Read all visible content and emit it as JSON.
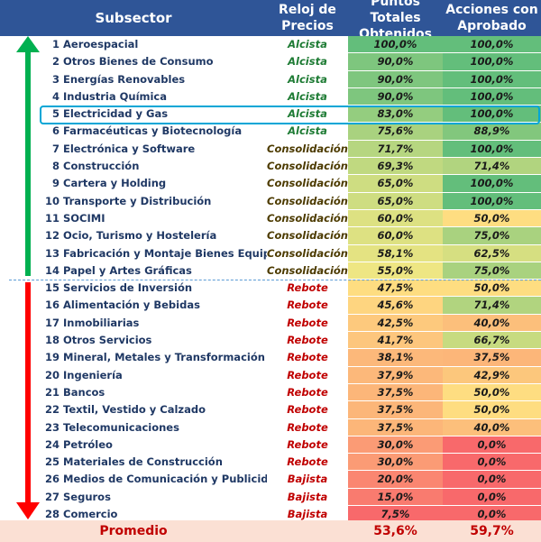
{
  "header": {
    "subsector": "Subsector",
    "reloj": "Reloj de Precios",
    "puntos": "Puntos Totales Obtenidos",
    "acciones": "Acciones con Aprobado"
  },
  "rows": [
    {
      "num": "1",
      "name": "Aeroespacial",
      "status": "Alcista",
      "pts": "100,0%",
      "acc": "100,0%",
      "pts_color": "#63be7b",
      "acc_color": "#63be7b"
    },
    {
      "num": "2",
      "name": "Otros Bienes de Consumo",
      "status": "Alcista",
      "pts": "90,0%",
      "acc": "100,0%",
      "pts_color": "#7ec67e",
      "acc_color": "#63be7b"
    },
    {
      "num": "3",
      "name": "Energías Renovables",
      "status": "Alcista",
      "pts": "90,0%",
      "acc": "100,0%",
      "pts_color": "#7ec67e",
      "acc_color": "#63be7b"
    },
    {
      "num": "4",
      "name": "Industria Química",
      "status": "Alcista",
      "pts": "90,0%",
      "acc": "100,0%",
      "pts_color": "#7ec67e",
      "acc_color": "#63be7b"
    },
    {
      "num": "5",
      "name": "Electricidad y Gas",
      "status": "Alcista",
      "pts": "83,0%",
      "acc": "100,0%",
      "pts_color": "#94cd7f",
      "acc_color": "#63be7b"
    },
    {
      "num": "6",
      "name": "Farmacéuticas y Biotecnología",
      "status": "Alcista",
      "pts": "75,6%",
      "acc": "88,9%",
      "pts_color": "#a9d27f",
      "acc_color": "#82c77d"
    },
    {
      "num": "7",
      "name": "Electrónica y Software",
      "status": "Consolidación",
      "pts": "71,7%",
      "acc": "100,0%",
      "pts_color": "#b6d680",
      "acc_color": "#63be7b"
    },
    {
      "num": "8",
      "name": "Construcción",
      "status": "Consolidación",
      "pts": "69,3%",
      "acc": "71,4%",
      "pts_color": "#c0d980",
      "acc_color": "#b1d47f"
    },
    {
      "num": "9",
      "name": "Cartera y Holding",
      "status": "Consolidación",
      "pts": "65,0%",
      "acc": "100,0%",
      "pts_color": "#cedd81",
      "acc_color": "#63be7b"
    },
    {
      "num": "10",
      "name": "Transporte y Distribución",
      "status": "Consolidación",
      "pts": "65,0%",
      "acc": "100,0%",
      "pts_color": "#cedd81",
      "acc_color": "#63be7b"
    },
    {
      "num": "11",
      "name": "SOCIMI",
      "status": "Consolidación",
      "pts": "60,0%",
      "acc": "50,0%",
      "pts_color": "#dde182",
      "acc_color": "#fedd81"
    },
    {
      "num": "12",
      "name": "Ocio, Turismo y Hostelería",
      "status": "Consolidación",
      "pts": "60,0%",
      "acc": "75,0%",
      "pts_color": "#dde182",
      "acc_color": "#a9d27f"
    },
    {
      "num": "13",
      "name": "Fabricación y Montaje Bienes Equipo",
      "status": "Consolidación",
      "pts": "58,1%",
      "acc": "62,5%",
      "pts_color": "#e4e382",
      "acc_color": "#d6df81"
    },
    {
      "num": "14",
      "name": "Papel y Artes Gráficas",
      "status": "Consolidación",
      "pts": "55,0%",
      "acc": "75,0%",
      "pts_color": "#eee683",
      "acc_color": "#a9d27f"
    },
    {
      "num": "15",
      "name": "Servicios de Inversión",
      "status": "Rebote",
      "pts": "47,5%",
      "acc": "50,0%",
      "pts_color": "#fedd81",
      "acc_color": "#fedd81"
    },
    {
      "num": "16",
      "name": "Alimentación y Bebidas",
      "status": "Rebote",
      "pts": "45,6%",
      "acc": "71,4%",
      "pts_color": "#fed580",
      "acc_color": "#b1d47f"
    },
    {
      "num": "17",
      "name": "Inmobiliarias",
      "status": "Rebote",
      "pts": "42,5%",
      "acc": "40,0%",
      "pts_color": "#fdc97d",
      "acc_color": "#fcbf7b"
    },
    {
      "num": "18",
      "name": "Otros Servicios",
      "status": "Rebote",
      "pts": "41,7%",
      "acc": "66,7%",
      "pts_color": "#fdc67d",
      "acc_color": "#c7db80"
    },
    {
      "num": "19",
      "name": "Mineral, Metales y Transformación",
      "status": "Rebote",
      "pts": "38,1%",
      "acc": "37,5%",
      "pts_color": "#fcb87a",
      "acc_color": "#fcb679"
    },
    {
      "num": "20",
      "name": "Ingeniería",
      "status": "Rebote",
      "pts": "37,9%",
      "acc": "42,9%",
      "pts_color": "#fcb87a",
      "acc_color": "#fcc77c"
    },
    {
      "num": "21",
      "name": "Bancos",
      "status": "Rebote",
      "pts": "37,5%",
      "acc": "50,0%",
      "pts_color": "#fcb679",
      "acc_color": "#fedd81"
    },
    {
      "num": "22",
      "name": "Textil, Vestido y Calzado",
      "status": "Rebote",
      "pts": "37,5%",
      "acc": "50,0%",
      "pts_color": "#fcb679",
      "acc_color": "#fedd81"
    },
    {
      "num": "23",
      "name": "Telecomunicaciones",
      "status": "Rebote",
      "pts": "37,5%",
      "acc": "40,0%",
      "pts_color": "#fcb679",
      "acc_color": "#fcbf7b"
    },
    {
      "num": "24",
      "name": "Petróleo",
      "status": "Rebote",
      "pts": "30,0%",
      "acc": "0,0%",
      "pts_color": "#fb9b75",
      "acc_color": "#f8696b"
    },
    {
      "num": "25",
      "name": "Materiales de Construcción",
      "status": "Rebote",
      "pts": "30,0%",
      "acc": "0,0%",
      "pts_color": "#fb9b75",
      "acc_color": "#f8696b"
    },
    {
      "num": "26",
      "name": "Medios de Comunicación y Publicidad",
      "status": "Bajista",
      "pts": "20,0%",
      "acc": "0,0%",
      "pts_color": "#fa8671",
      "acc_color": "#f8696b"
    },
    {
      "num": "27",
      "name": "Seguros",
      "status": "Bajista",
      "pts": "15,0%",
      "acc": "0,0%",
      "pts_color": "#f97b6f",
      "acc_color": "#f8696b"
    },
    {
      "num": "28",
      "name": "Comercio",
      "status": "Bajista",
      "pts": "7,5%",
      "acc": "0,0%",
      "pts_color": "#f8696b",
      "acc_color": "#f8696b"
    }
  ],
  "footer": {
    "label": "Promedio",
    "pts": "53,6%",
    "acc": "59,7%"
  },
  "colors": {
    "header_bg": "#2f5597",
    "footer_bg": "#fbe0d4",
    "arrow_up": "#00b050",
    "arrow_down": "#ff0000",
    "highlight_border": "#00a6d6",
    "divider": "#5b9bd5"
  }
}
